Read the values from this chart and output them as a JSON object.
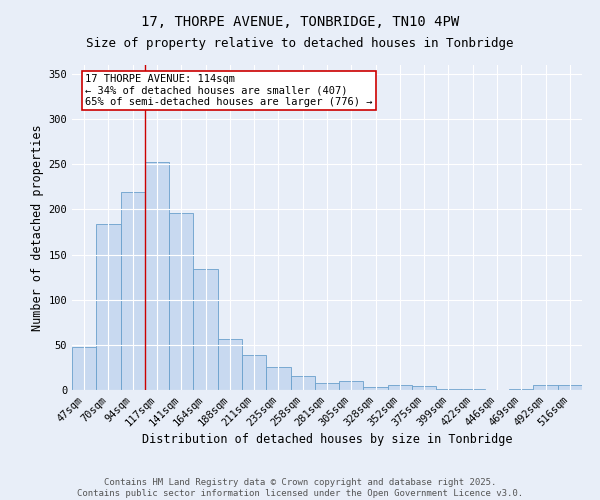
{
  "title": "17, THORPE AVENUE, TONBRIDGE, TN10 4PW",
  "subtitle": "Size of property relative to detached houses in Tonbridge",
  "xlabel": "Distribution of detached houses by size in Tonbridge",
  "ylabel": "Number of detached properties",
  "categories": [
    "47sqm",
    "70sqm",
    "94sqm",
    "117sqm",
    "141sqm",
    "164sqm",
    "188sqm",
    "211sqm",
    "235sqm",
    "258sqm",
    "281sqm",
    "305sqm",
    "328sqm",
    "352sqm",
    "375sqm",
    "399sqm",
    "422sqm",
    "446sqm",
    "469sqm",
    "492sqm",
    "516sqm"
  ],
  "values": [
    48,
    184,
    219,
    253,
    196,
    134,
    57,
    39,
    26,
    15,
    8,
    10,
    3,
    5,
    4,
    1,
    1,
    0,
    1,
    6,
    6
  ],
  "bar_color": "#c8d9f0",
  "bar_edge_color": "#6aa0cc",
  "vline_x": 2.5,
  "vline_color": "#cc0000",
  "annotation_title": "17 THORPE AVENUE: 114sqm",
  "annotation_line2": "← 34% of detached houses are smaller (407)",
  "annotation_line3": "65% of semi-detached houses are larger (776) →",
  "annotation_box_color": "white",
  "annotation_box_edge": "#cc0000",
  "ylim": [
    0,
    360
  ],
  "yticks": [
    0,
    50,
    100,
    150,
    200,
    250,
    300,
    350
  ],
  "background_color": "#e8eef8",
  "grid_color": "#ffffff",
  "footer_line1": "Contains HM Land Registry data © Crown copyright and database right 2025.",
  "footer_line2": "Contains public sector information licensed under the Open Government Licence v3.0.",
  "title_fontsize": 10,
  "subtitle_fontsize": 9,
  "xlabel_fontsize": 8.5,
  "ylabel_fontsize": 8.5,
  "tick_fontsize": 7.5,
  "annotation_fontsize": 7.5,
  "footer_fontsize": 6.5
}
